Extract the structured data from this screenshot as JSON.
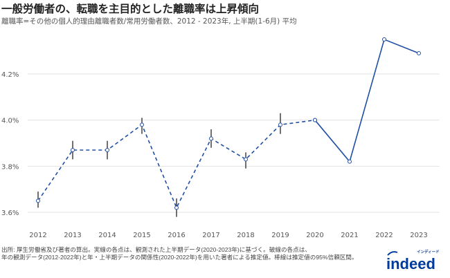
{
  "title": "一般労働者の、転職を主目的とした離職率は上昇傾向",
  "subtitle": "離職率=その他の個人的理由離職者数/常用労働者数、2012 - 2023年, 上半期(1-6月) 平均",
  "footer": {
    "line1": "出所: 厚生労働省及び著者の算出。実線の各点は、観測された上半期データ(2020-2023年)に基づく。破線の各点は、",
    "line2": "年の観測データ(2012-2022年)と年・上半期データの関係性(2020-2022年)を用いた著者による推定値。棒線は推定値の95%信頼区間。"
  },
  "logo": {
    "text": "indeed",
    "kana": "インディード",
    "color": "#003a9b"
  },
  "chart_data": {
    "type": "line",
    "title": "一般労働者の、転職を主目的とした離職率は上昇傾向",
    "xlabel": "",
    "ylabel": "",
    "x": [
      2012,
      2013,
      2014,
      2015,
      2016,
      2017,
      2018,
      2019,
      2020,
      2021,
      2022,
      2023
    ],
    "ylim": [
      3.55,
      4.4
    ],
    "yticks": [
      3.6,
      3.8,
      4.0,
      4.2
    ],
    "ytick_labels": [
      "3.6%",
      "3.8%",
      "4.0%",
      "4.2%"
    ],
    "xtick_labels": [
      "2012",
      "2013",
      "2014",
      "2015",
      "2016",
      "2017",
      "2018",
      "2019",
      "2020",
      "2021",
      "2022",
      "2023"
    ],
    "grid": "horizontal",
    "color": "#1f4ea3",
    "series": [
      {
        "style": "dashed",
        "x": [
          2012,
          2013,
          2014,
          2015,
          2016,
          2017,
          2018,
          2019,
          2020
        ],
        "values": [
          3.65,
          3.87,
          3.87,
          3.98,
          3.62,
          3.92,
          3.83,
          3.98,
          4.0
        ],
        "ci_low": [
          3.62,
          3.83,
          3.83,
          3.94,
          3.58,
          3.88,
          3.79,
          3.94,
          null
        ],
        "ci_high": [
          3.69,
          3.91,
          3.91,
          4.01,
          3.66,
          3.96,
          3.86,
          4.03,
          null
        ]
      },
      {
        "style": "solid",
        "x": [
          2020,
          2021,
          2022,
          2023
        ],
        "values": [
          4.0,
          3.82,
          4.35,
          4.29
        ]
      }
    ]
  }
}
